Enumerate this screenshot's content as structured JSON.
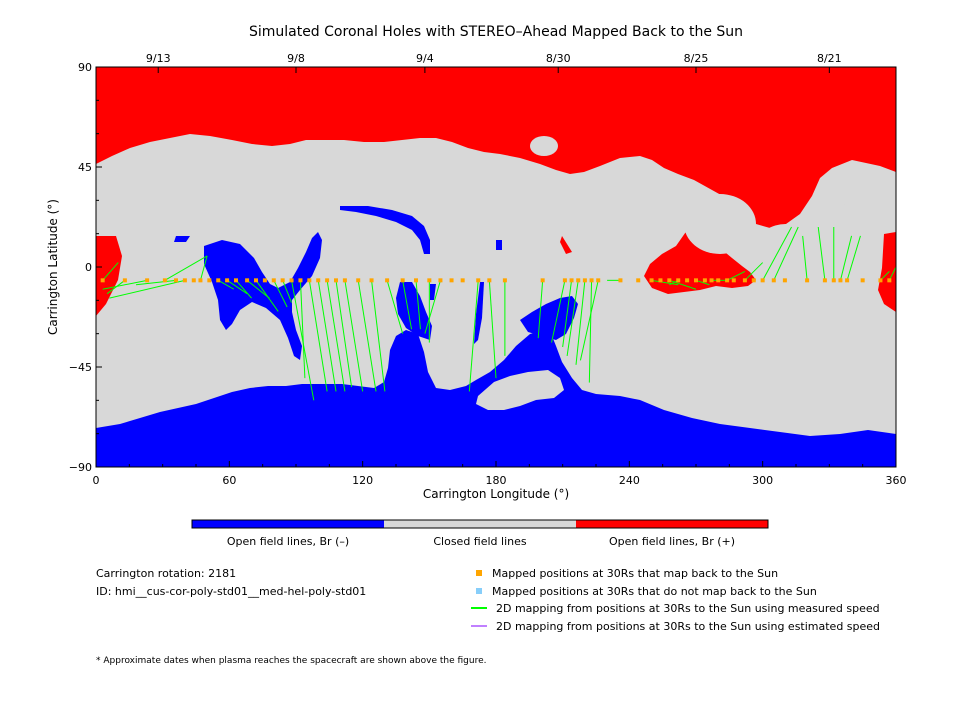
{
  "chart_data": {
    "type": "map",
    "title": "Simulated Coronal Holes with STEREO–Ahead Mapped Back to the Sun",
    "xlabel": "Carrington Longitude (°)",
    "ylabel": "Carrington Latitude (°)",
    "xlim": [
      0,
      360
    ],
    "ylim": [
      -90,
      90
    ],
    "x_ticks": [
      "0",
      "60",
      "120",
      "180",
      "240",
      "300",
      "360"
    ],
    "y_ticks": [
      "90",
      "45",
      "0",
      "−45",
      "−90"
    ],
    "x_tick_values": [
      0,
      60,
      120,
      180,
      240,
      300,
      360
    ],
    "y_tick_values": [
      90,
      45,
      0,
      -45,
      -90
    ],
    "top_axis": {
      "labels": [
        "9/13",
        "9/8",
        "9/4",
        "8/30",
        "8/25",
        "8/21"
      ],
      "longitudes": [
        28,
        90,
        148,
        208,
        270,
        330
      ]
    },
    "colors": {
      "open_negative": "#0000ff",
      "closed": "#d8d8d8",
      "open_positive": "#ff0000",
      "mapped_point": "#ffa500",
      "unmapped_point": "#87cefa",
      "measured_speed": "#00ff00",
      "estimated_speed": "#c080ff"
    },
    "colorbar": {
      "labels": [
        "Open field lines, Br (–)",
        "Closed field lines",
        "Open field lines, Br (+)"
      ]
    },
    "spacecraft_latitude": -6,
    "mapped_points_lon": [
      3,
      13,
      23,
      31,
      36,
      40,
      44,
      47,
      51,
      55,
      59,
      63,
      68,
      72,
      76,
      80,
      84,
      88,
      92,
      96,
      100,
      104,
      108,
      112,
      118,
      124,
      131,
      138,
      144,
      150,
      155,
      160,
      165,
      172,
      177,
      184,
      201,
      211,
      214,
      217,
      220,
      223,
      226,
      236,
      244,
      250,
      254,
      258,
      262,
      266,
      270,
      274,
      277,
      280,
      284,
      287,
      292,
      296,
      300,
      305,
      310,
      320,
      328,
      332,
      335,
      338,
      345,
      353,
      357
    ],
    "connections": [
      [
        3,
        -6,
        10,
        2
      ],
      [
        13,
        -6,
        5,
        -12
      ],
      [
        23,
        -6,
        3,
        -10
      ],
      [
        31,
        -6,
        50,
        5
      ],
      [
        36,
        -6,
        18,
        -8
      ],
      [
        40,
        -6,
        6,
        -14
      ],
      [
        47,
        -6,
        50,
        5
      ],
      [
        55,
        -6,
        62,
        -10
      ],
      [
        59,
        -6,
        68,
        -12
      ],
      [
        63,
        -6,
        70,
        -14
      ],
      [
        68,
        -6,
        78,
        -14
      ],
      [
        72,
        -6,
        82,
        -20
      ],
      [
        80,
        -6,
        86,
        -18
      ],
      [
        84,
        -6,
        88,
        -16
      ],
      [
        88,
        -6,
        98,
        -60
      ],
      [
        92,
        -6,
        94,
        -50
      ],
      [
        96,
        -6,
        104,
        -56
      ],
      [
        100,
        -6,
        108,
        -56
      ],
      [
        104,
        -6,
        112,
        -56
      ],
      [
        108,
        -6,
        115,
        -54
      ],
      [
        112,
        -6,
        120,
        -56
      ],
      [
        118,
        -6,
        126,
        -56
      ],
      [
        124,
        -6,
        130,
        -56
      ],
      [
        131,
        -6,
        138,
        -30
      ],
      [
        138,
        -6,
        142,
        -28
      ],
      [
        144,
        -6,
        146,
        -28
      ],
      [
        150,
        -6,
        150,
        -34
      ],
      [
        155,
        -6,
        148,
        -30
      ],
      [
        172,
        -6,
        168,
        -56
      ],
      [
        177,
        -6,
        180,
        -50
      ],
      [
        184,
        -6,
        184,
        -40
      ],
      [
        201,
        -6,
        199,
        -32
      ],
      [
        211,
        -6,
        205,
        -34
      ],
      [
        214,
        -6,
        210,
        -36
      ],
      [
        217,
        -6,
        212,
        -40
      ],
      [
        220,
        -6,
        216,
        -44
      ],
      [
        223,
        -6,
        222,
        -52
      ],
      [
        226,
        -6,
        218,
        -42
      ],
      [
        236,
        -6,
        230,
        -6
      ],
      [
        250,
        -6,
        262,
        -8
      ],
      [
        258,
        -6,
        270,
        -10
      ],
      [
        262,
        -6,
        258,
        -8
      ],
      [
        270,
        -6,
        276,
        -8
      ],
      [
        277,
        -6,
        284,
        -6
      ],
      [
        284,
        -6,
        292,
        -2
      ],
      [
        292,
        -6,
        300,
        2
      ],
      [
        300,
        -6,
        313,
        18
      ],
      [
        305,
        -6,
        316,
        18
      ],
      [
        320,
        -6,
        318,
        14
      ],
      [
        328,
        -6,
        325,
        18
      ],
      [
        332,
        -6,
        332,
        18
      ],
      [
        335,
        -6,
        340,
        14
      ],
      [
        338,
        -6,
        344,
        14
      ],
      [
        353,
        -6,
        357,
        -2
      ],
      [
        357,
        -6,
        362,
        4
      ]
    ]
  },
  "info": {
    "rotation": "Carrington rotation: 2181",
    "id": "ID: hmi__cus-cor-poly-std01__med-hel-poly-std01",
    "footnote": "* Approximate dates when plasma reaches the spacecraft are shown above the figure."
  },
  "legend": [
    {
      "label": "Mapped positions at 30Rs that map back to the Sun",
      "icon": "orange-square-marker"
    },
    {
      "label": "Mapped positions at 30Rs that do not map back to the Sun",
      "icon": "lightblue-square-marker"
    },
    {
      "label": "2D mapping from positions at 30Rs to the Sun using measured speed",
      "icon": "green-line-marker"
    },
    {
      "label": "2D mapping from positions at 30Rs to the Sun using estimated speed",
      "icon": "purple-line-marker"
    }
  ]
}
